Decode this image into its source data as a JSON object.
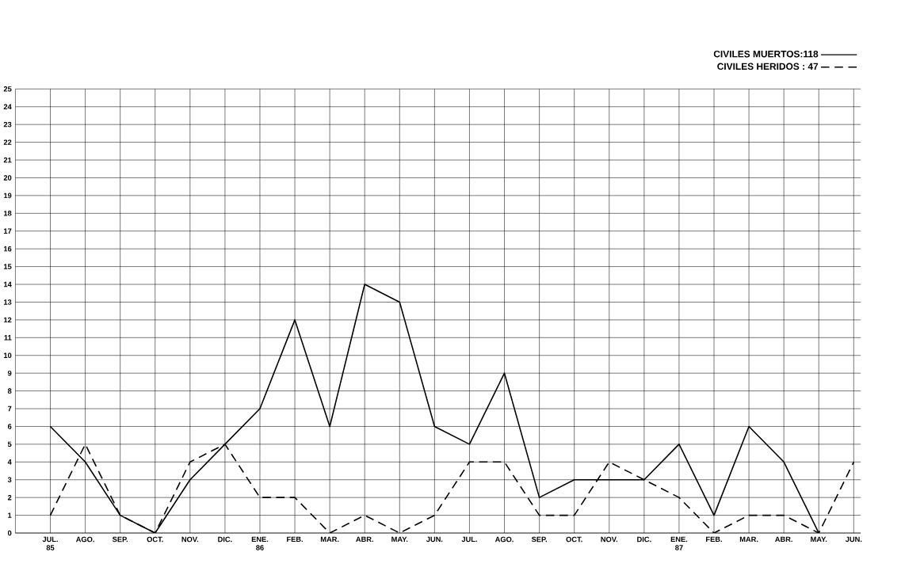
{
  "chart_data": {
    "type": "line",
    "categories": [
      "JUL. 85",
      "AGO.",
      "SEP.",
      "OCT.",
      "NOV.",
      "DIC.",
      "ENE. 86",
      "FEB.",
      "MAR.",
      "ABR.",
      "MAY.",
      "JUN.",
      "JUL.",
      "AGO.",
      "SEP.",
      "OCT.",
      "NOV.",
      "DIC.",
      "ENE. 87",
      "FEB.",
      "MAR.",
      "ABR.",
      "MAY.",
      "JUN."
    ],
    "series": [
      {
        "name": "CIVILES MUERTOS:118",
        "color": "#000000",
        "line_style": "solid",
        "values": [
          6,
          4,
          1,
          0,
          3,
          5,
          7,
          12,
          6,
          14,
          13,
          6,
          5,
          9,
          2,
          3,
          3,
          3,
          5,
          1,
          6,
          4,
          0,
          null
        ]
      },
      {
        "name": "CIVILES HERIDOS : 47",
        "color": "#000000",
        "line_style": "dashed",
        "values": [
          1,
          5,
          1,
          0,
          4,
          5,
          2,
          2,
          0,
          1,
          0,
          1,
          4,
          4,
          1,
          1,
          4,
          3,
          2,
          0,
          1,
          1,
          0,
          4
        ]
      }
    ],
    "ylim": [
      0,
      25
    ],
    "yticks": [
      0,
      1,
      2,
      3,
      4,
      5,
      6,
      7,
      8,
      9,
      10,
      11,
      12,
      13,
      14,
      15,
      16,
      17,
      18,
      19,
      20,
      21,
      22,
      23,
      24,
      25
    ],
    "grid": true,
    "legend": "top right",
    "marker": "none"
  }
}
